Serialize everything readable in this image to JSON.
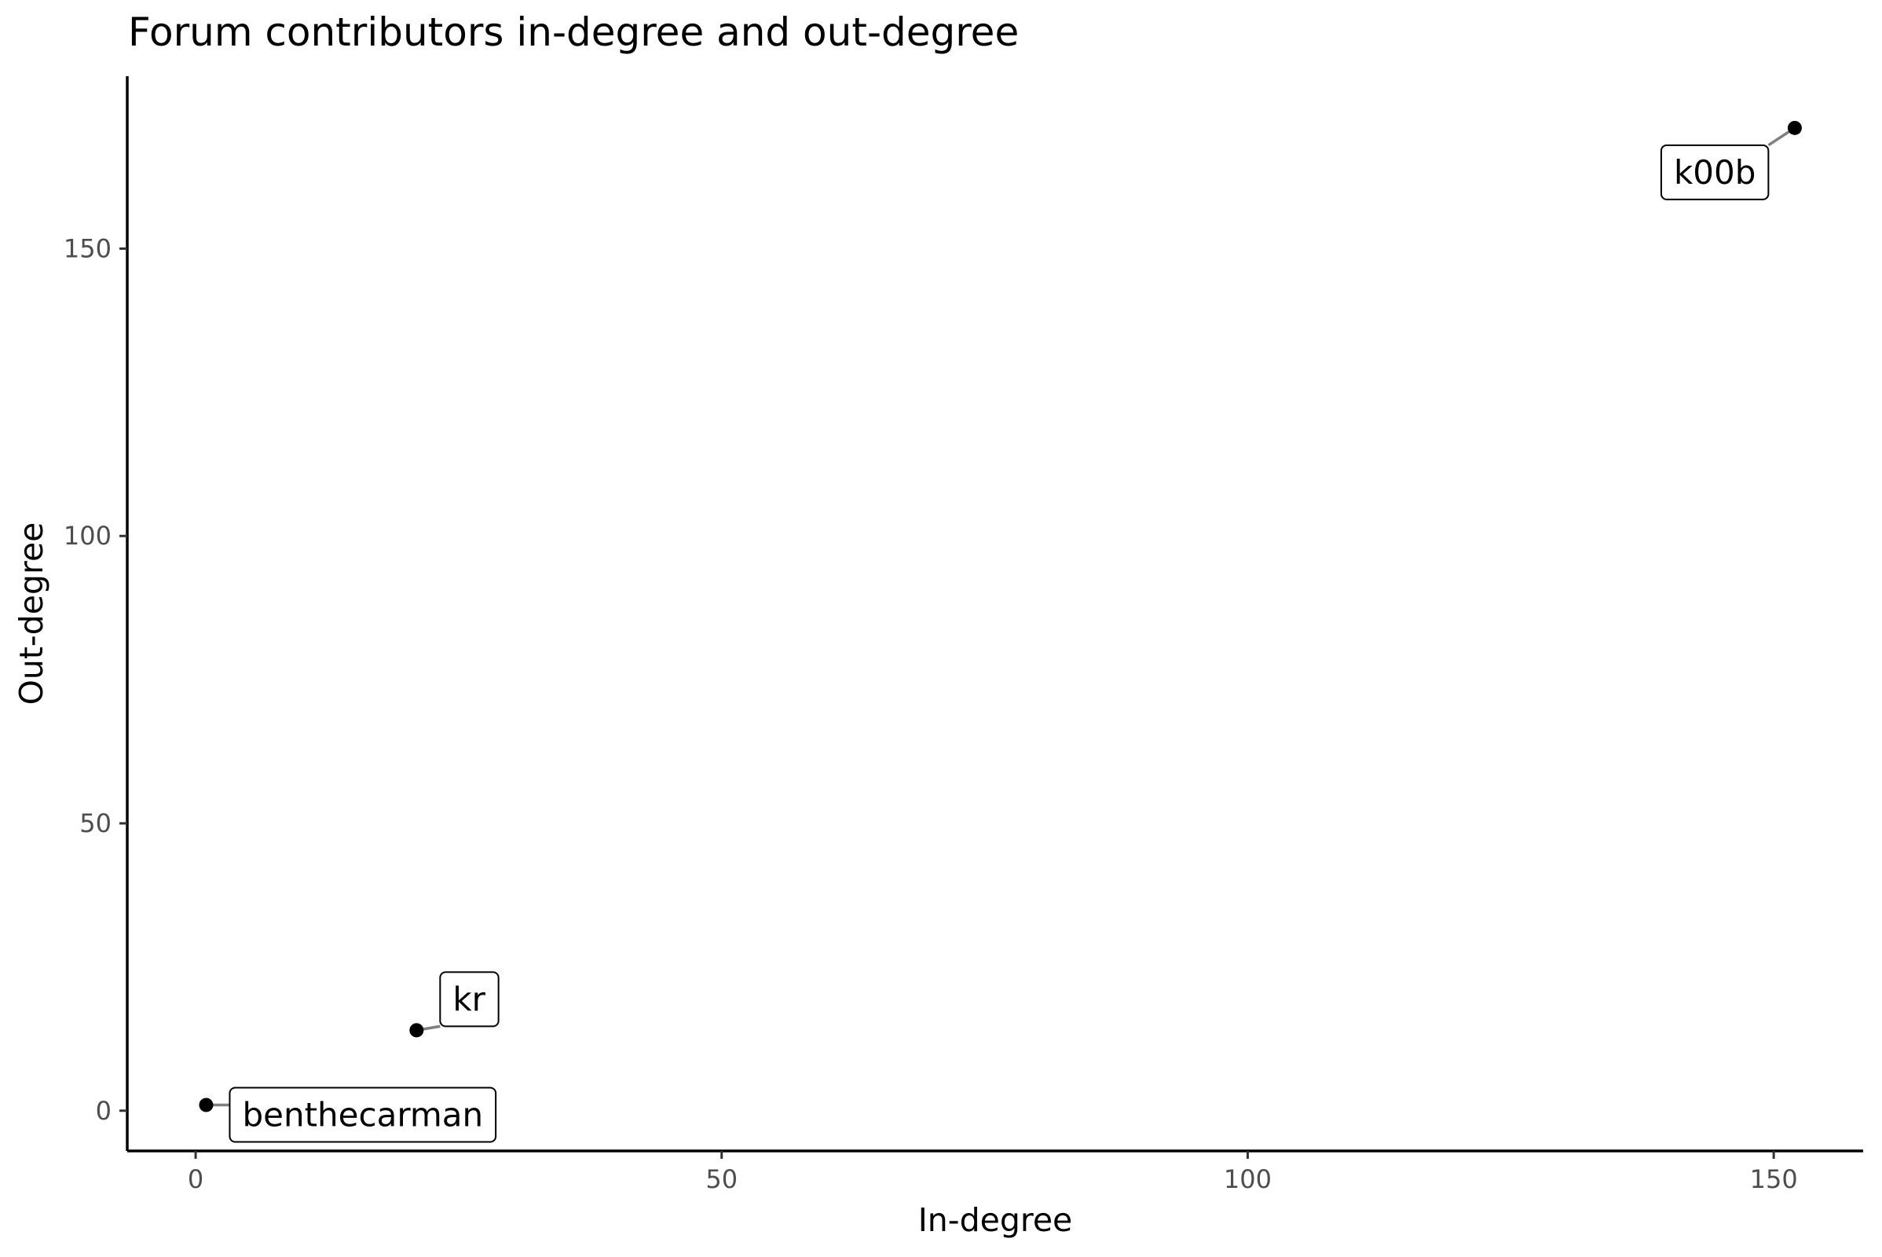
{
  "chart_data": {
    "type": "scatter",
    "title": "Forum contributors in-degree and out-degree",
    "xlabel": "In-degree",
    "ylabel": "Out-degree",
    "xlim": [
      -6.5,
      158.5
    ],
    "ylim": [
      -7,
      180
    ],
    "xticks": [
      0,
      50,
      100,
      150
    ],
    "yticks": [
      0,
      50,
      100,
      150
    ],
    "grid": false,
    "legend": "none",
    "point_color": "#000000",
    "label_leader_color": "#7f7f7f",
    "points": [
      {
        "label": "benthecarman",
        "x": 1,
        "y": 1,
        "label_placement": "right-below"
      },
      {
        "label": "kr",
        "x": 21,
        "y": 14,
        "label_placement": "right-above"
      },
      {
        "label": "k00b",
        "x": 152,
        "y": 171,
        "label_placement": "left-below"
      }
    ]
  }
}
